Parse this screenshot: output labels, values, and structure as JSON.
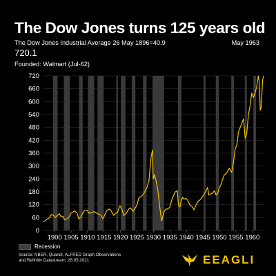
{
  "header": {
    "title": "The Dow Jones turns 125 years old",
    "subtitle": "The Dow Jones Industrial Average 26 May 1896=40.9",
    "date": "May 1963",
    "value": "720.1",
    "founded": "Founded: Walmart (Jul-62)"
  },
  "legend": {
    "recession_label": "Recession"
  },
  "source": {
    "line1": "Source: NBER, Quandl, ALFRED Graph Observations",
    "line2": "and Refinitiv Datastream, 26.05.2021"
  },
  "brand": {
    "name": "EEAGLI",
    "icon": "eagle-icon"
  },
  "colors": {
    "line": "#f2c200",
    "recession": "#3a3a3a",
    "grid": "#3a3a3a",
    "background": "#000000"
  },
  "chart_data": {
    "type": "line",
    "title": "The Dow Jones turns 125 years old",
    "ylim": [
      0,
      720
    ],
    "yticks": [
      0,
      60,
      120,
      180,
      240,
      300,
      360,
      420,
      480,
      540,
      600,
      660,
      720
    ],
    "xlim": [
      1896.4,
      1963.4
    ],
    "xticks": [
      "1900",
      "1905",
      "1910",
      "1915",
      "1920",
      "1925",
      "1930",
      "1935",
      "1940",
      "1945",
      "1950",
      "1955",
      "1960"
    ],
    "grid": true,
    "legend_position": "bottom-left",
    "series": [
      {
        "x": [
          1896.4,
          1897.0,
          1897.5,
          1898.0,
          1898.5,
          1899.0,
          1899.3,
          1899.8,
          1900.2,
          1900.8,
          1901.4,
          1901.8,
          1902.5,
          1903.0,
          1903.8,
          1904.5,
          1905.0,
          1905.5,
          1906.0,
          1906.8,
          1907.3,
          1907.9,
          1908.5,
          1909.0,
          1909.8,
          1910.5,
          1911.0,
          1911.5,
          1912.0,
          1912.8,
          1913.5,
          1914.0,
          1914.6,
          1915.0,
          1915.8,
          1916.5,
          1917.0,
          1917.9,
          1918.5,
          1919.0,
          1919.8,
          1920.5,
          1921.0,
          1921.6,
          1922.5,
          1923.0,
          1923.8,
          1924.5,
          1925.0,
          1925.5,
          1926.0,
          1927.0,
          1928.0,
          1928.6,
          1929.0,
          1929.3,
          1929.7,
          1929.9,
          1930.3,
          1930.8,
          1931.3,
          1931.8,
          1932.3,
          1932.5,
          1932.8,
          1933.3,
          1933.8,
          1934.3,
          1935.0,
          1935.5,
          1936.0,
          1936.6,
          1937.2,
          1937.6,
          1938.0,
          1938.3,
          1938.8,
          1939.3,
          1939.8,
          1940.4,
          1941.0,
          1941.8,
          1942.3,
          1942.8,
          1943.5,
          1944.3,
          1945.0,
          1945.8,
          1946.4,
          1946.8,
          1947.3,
          1948.0,
          1948.5,
          1949.0,
          1949.5,
          1950.0,
          1950.5,
          1951.0,
          1951.5,
          1952.0,
          1952.5,
          1953.0,
          1953.7,
          1954.3,
          1954.8,
          1955.3,
          1955.8,
          1956.3,
          1956.8,
          1957.3,
          1957.8,
          1958.3,
          1958.8,
          1959.3,
          1959.8,
          1960.3,
          1960.8,
          1961.3,
          1961.8,
          1962.1,
          1962.4,
          1962.7,
          1962.9,
          1963.1,
          1963.4
        ],
        "values": [
          41,
          44,
          50,
          55,
          60,
          75,
          72,
          68,
          60,
          70,
          78,
          67,
          66,
          50,
          55,
          65,
          82,
          85,
          92,
          80,
          55,
          60,
          80,
          92,
          95,
          80,
          82,
          85,
          88,
          80,
          75,
          72,
          55,
          65,
          92,
          100,
          95,
          70,
          80,
          82,
          115,
          95,
          70,
          78,
          100,
          105,
          90,
          105,
          120,
          150,
          155,
          170,
          200,
          230,
          300,
          345,
          375,
          240,
          260,
          230,
          190,
          120,
          60,
          45,
          65,
          90,
          100,
          100,
          110,
          140,
          160,
          180,
          185,
          115,
          110,
          130,
          155,
          145,
          150,
          140,
          120,
          110,
          95,
          115,
          135,
          145,
          160,
          180,
          200,
          165,
          170,
          175,
          185,
          165,
          175,
          200,
          215,
          240,
          260,
          265,
          275,
          290,
          270,
          320,
          380,
          400,
          460,
          480,
          500,
          520,
          430,
          450,
          540,
          580,
          640,
          620,
          640,
          670,
          720,
          690,
          560,
          575,
          640,
          700,
          720
        ]
      }
    ],
    "recessions": [
      [
        1899.5,
        1900.9
      ],
      [
        1902.8,
        1904.6
      ],
      [
        1907.4,
        1908.5
      ],
      [
        1910.1,
        1912.0
      ],
      [
        1913.0,
        1914.9
      ],
      [
        1918.7,
        1919.2
      ],
      [
        1920.1,
        1921.5
      ],
      [
        1923.4,
        1924.5
      ],
      [
        1926.8,
        1927.9
      ],
      [
        1929.7,
        1933.2
      ],
      [
        1937.4,
        1938.5
      ],
      [
        1945.2,
        1945.8
      ],
      [
        1948.9,
        1949.8
      ],
      [
        1953.6,
        1954.4
      ],
      [
        1957.7,
        1958.3
      ],
      [
        1960.3,
        1961.1
      ]
    ]
  }
}
